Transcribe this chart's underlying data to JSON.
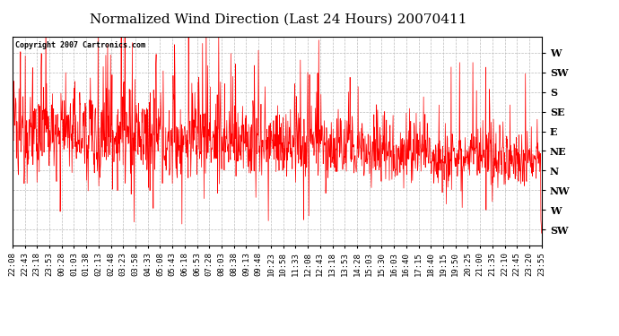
{
  "title": "Normalized Wind Direction (Last 24 Hours) 20070411",
  "copyright_text": "Copyright 2007 Cartronics.com",
  "background_color": "#ffffff",
  "plot_bg_color": "#ffffff",
  "line_color": "#ff0000",
  "ytick_labels": [
    "W",
    "SW",
    "S",
    "SE",
    "E",
    "NE",
    "N",
    "NW",
    "W",
    "SW"
  ],
  "ytick_values": [
    8,
    7,
    6,
    5,
    4,
    3,
    2,
    1,
    0,
    -1
  ],
  "ylim": [
    -1.8,
    8.8
  ],
  "xtick_labels": [
    "22:08",
    "22:43",
    "23:18",
    "23:53",
    "00:28",
    "01:03",
    "01:38",
    "02:13",
    "02:48",
    "03:23",
    "03:58",
    "04:33",
    "05:08",
    "05:43",
    "06:18",
    "06:53",
    "07:28",
    "08:03",
    "08:38",
    "09:13",
    "09:48",
    "10:23",
    "10:58",
    "11:33",
    "12:08",
    "12:43",
    "13:18",
    "13:53",
    "14:28",
    "15:03",
    "15:30",
    "16:03",
    "16:40",
    "17:15",
    "18:40",
    "19:15",
    "19:50",
    "20:25",
    "21:00",
    "21:35",
    "22:10",
    "22:45",
    "23:20",
    "23:55"
  ],
  "grid_color": "#bbbbbb",
  "grid_linestyle": "--",
  "title_fontsize": 11,
  "tick_fontsize": 6.5,
  "ytick_fontsize": 8
}
